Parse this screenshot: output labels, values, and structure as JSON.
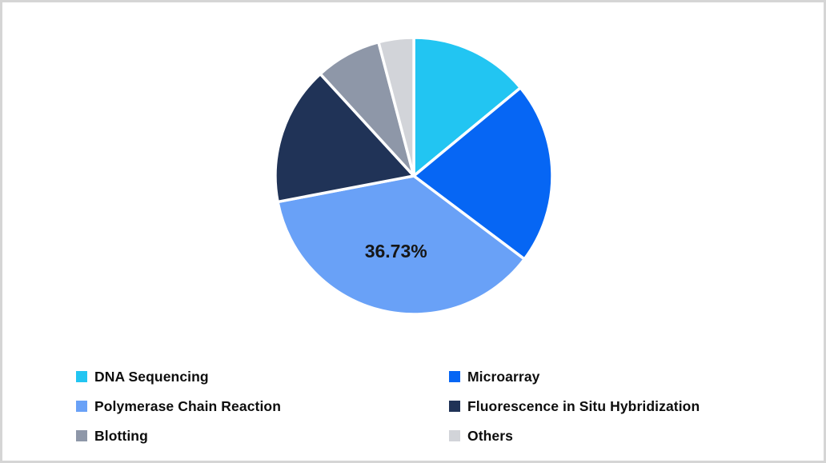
{
  "page": {
    "background_color": "#FFFFFF",
    "border_color": "#D5D5D5"
  },
  "chart_data": {
    "type": "pie",
    "title": "",
    "start_angle_deg": 0,
    "direction": "clockwise",
    "separator_color": "#FFFFFF",
    "data_label_color": "#161616",
    "legend_position": "bottom",
    "legend_columns": 2,
    "visible_data_labels": [
      "36.73%"
    ],
    "series": [
      {
        "label": "DNA Sequencing",
        "value_pct": 14.0,
        "color": "#22C5F2",
        "data_label": ""
      },
      {
        "label": "Microarray",
        "value_pct": 21.27,
        "color": "#0666F4",
        "data_label": ""
      },
      {
        "label": "Polymerase Chain Reaction",
        "value_pct": 36.73,
        "color": "#69A1F7",
        "data_label": "36.73%"
      },
      {
        "label": "Fluorescence in Situ Hybridization",
        "value_pct": 16.2,
        "color": "#203357",
        "data_label": ""
      },
      {
        "label": "Blotting",
        "value_pct": 7.7,
        "color": "#8E97A8",
        "data_label": ""
      },
      {
        "label": "Others",
        "value_pct": 4.1,
        "color": "#D2D4D9",
        "data_label": ""
      }
    ],
    "layout": {
      "pie_center_x": 517,
      "pie_center_y": 220,
      "pie_radius": 173,
      "label_radius_ratio": 0.57
    }
  }
}
